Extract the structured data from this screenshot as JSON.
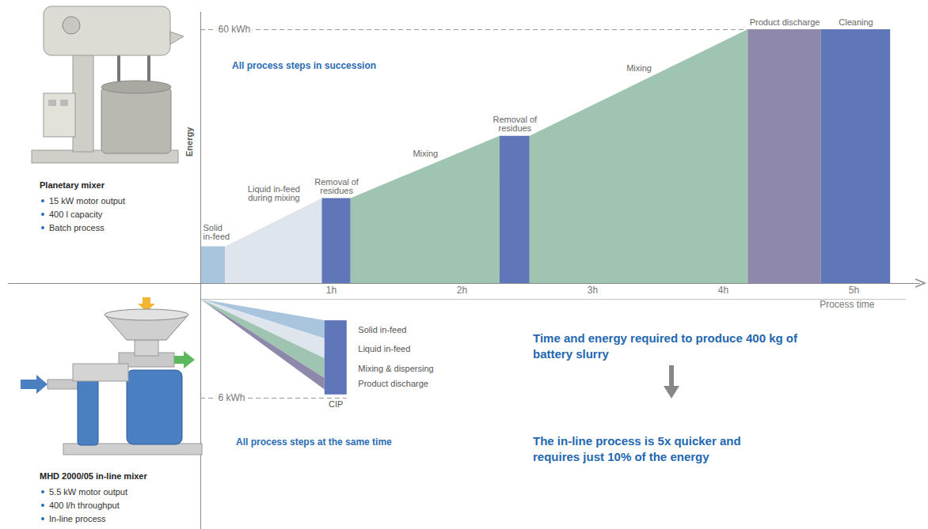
{
  "chart_data": [
    {
      "type": "area",
      "title": "All process steps in succession",
      "machine": {
        "name": "Planetary mixer",
        "specs": [
          "15 kW motor output",
          "400 l capacity",
          "Batch process"
        ]
      },
      "x_label": "Process time",
      "y_label": "Energy",
      "xlim": [
        0,
        5.4
      ],
      "xticks": [
        {
          "value": 1,
          "label": "1h"
        },
        {
          "value": 2,
          "label": "2h"
        },
        {
          "value": 3,
          "label": "3h"
        },
        {
          "value": 4,
          "label": "4h"
        },
        {
          "value": 5,
          "label": "5h"
        }
      ],
      "ylim": [
        0,
        60
      ],
      "yticks": [
        {
          "value": 60,
          "label": "60 kWh"
        }
      ],
      "grid": true,
      "series": [
        {
          "name": "Solid in-feed",
          "color": "#a9c5de",
          "x": [
            0,
            0.19
          ],
          "values": [
            8.7,
            8.7
          ]
        },
        {
          "name": "Liquid in-feed during mixing",
          "color": "#dfe5ec",
          "x": [
            0.19,
            0.93
          ],
          "values": [
            8.7,
            20.1
          ]
        },
        {
          "name": "Removal of residues",
          "color": "#5f77b9",
          "x": [
            0.93,
            1.15
          ],
          "values": [
            20.1,
            20.1
          ]
        },
        {
          "name": "Mixing",
          "color": "#a0c4b2",
          "x": [
            1.15,
            2.29
          ],
          "values": [
            20.1,
            34.8
          ]
        },
        {
          "name": "Removal of residues",
          "color": "#5f77b9",
          "x": [
            2.29,
            2.52
          ],
          "values": [
            34.8,
            34.8
          ]
        },
        {
          "name": "Mixing",
          "color": "#a0c4b2",
          "x": [
            2.52,
            4.19
          ],
          "values": [
            34.8,
            60
          ]
        },
        {
          "name": "Product discharge",
          "color": "#8e89aa",
          "x": [
            4.19,
            4.75
          ],
          "values": [
            60,
            60
          ]
        },
        {
          "name": "Cleaning",
          "color": "#5f77b9",
          "x": [
            4.75,
            5.28
          ],
          "values": [
            60,
            60
          ]
        }
      ]
    },
    {
      "type": "area",
      "title": "All process steps at the same time",
      "machine": {
        "name": "MHD 2000/05 in-line mixer",
        "specs": [
          "5.5 kW motor output",
          "400 l/h throughput",
          "In-line process"
        ]
      },
      "xlim": [
        0,
        5.4
      ],
      "ylim": [
        0,
        6
      ],
      "yticks": [
        {
          "value": 6,
          "label": "6 kWh"
        }
      ],
      "grid": true,
      "tick_labels": "y",
      "series": [
        {
          "name": "Solid in-feed",
          "color": "#a9c5de",
          "x": [
            0,
            0.95
          ],
          "lower": [
            0,
            1.3
          ],
          "upper": [
            0,
            2.4
          ]
        },
        {
          "name": "Liquid in-feed",
          "color": "#dfe5ec",
          "x": [
            0,
            0.95
          ],
          "lower": [
            0,
            2.4
          ],
          "upper": [
            0,
            3.6
          ]
        },
        {
          "name": "Mixing & dispersing",
          "color": "#a0c4b2",
          "x": [
            0,
            0.95
          ],
          "lower": [
            0,
            3.6
          ],
          "upper": [
            0,
            4.8
          ]
        },
        {
          "name": "Product discharge",
          "color": "#8e89aa",
          "x": [
            0,
            0.95
          ],
          "lower": [
            0,
            4.8
          ],
          "upper": [
            0,
            5.5
          ]
        },
        {
          "name": "CIP",
          "type": "rect",
          "color": "#5f77b9",
          "x": [
            0.95,
            1.12
          ],
          "lower": [
            1.3,
            1.3
          ],
          "upper": [
            5.8,
            5.8
          ]
        }
      ],
      "annotations": [
        "Time and energy required to produce 400 kg of battery slurry",
        "The in-line process is 5x quicker and requires just 10% of the energy"
      ]
    }
  ]
}
